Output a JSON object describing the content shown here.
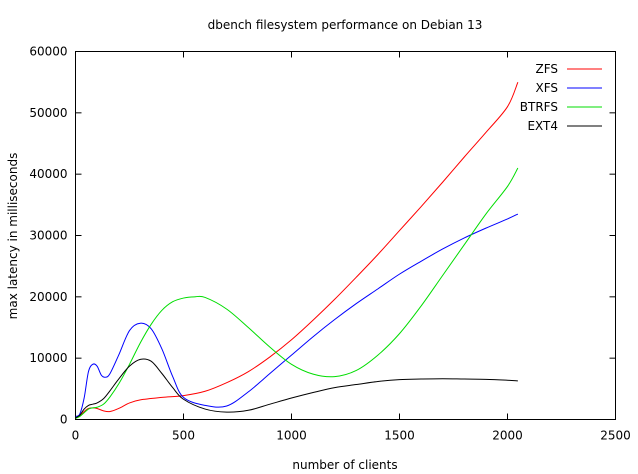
{
  "chart_data": {
    "type": "line",
    "title": "dbench filesystem performance on Debian 13",
    "xlabel": "number of clients",
    "ylabel": "max latency in milliseconds",
    "xlim": [
      0,
      2500
    ],
    "ylim": [
      0,
      60000
    ],
    "xticks": [
      0,
      500,
      1000,
      1500,
      2000,
      2500
    ],
    "yticks": [
      0,
      10000,
      20000,
      30000,
      40000,
      50000,
      60000
    ],
    "grid": false,
    "legend_position": "top-right",
    "series": [
      {
        "name": "ZFS",
        "color": "#ff0000",
        "points": [
          [
            1,
            200
          ],
          [
            20,
            600
          ],
          [
            40,
            1300
          ],
          [
            60,
            1800
          ],
          [
            80,
            1900
          ],
          [
            100,
            1800
          ],
          [
            130,
            1400
          ],
          [
            160,
            1300
          ],
          [
            200,
            1800
          ],
          [
            250,
            2700
          ],
          [
            300,
            3200
          ],
          [
            400,
            3600
          ],
          [
            500,
            3900
          ],
          [
            600,
            4600
          ],
          [
            700,
            6000
          ],
          [
            800,
            7800
          ],
          [
            900,
            10200
          ],
          [
            1000,
            13000
          ],
          [
            1100,
            16200
          ],
          [
            1200,
            19600
          ],
          [
            1300,
            23200
          ],
          [
            1400,
            26900
          ],
          [
            1500,
            30800
          ],
          [
            1600,
            34700
          ],
          [
            1700,
            38700
          ],
          [
            1800,
            42800
          ],
          [
            1900,
            46800
          ],
          [
            2000,
            51000
          ],
          [
            2048,
            55000
          ]
        ]
      },
      {
        "name": "XFS",
        "color": "#0000ff",
        "points": [
          [
            1,
            500
          ],
          [
            20,
            900
          ],
          [
            40,
            3500
          ],
          [
            60,
            7800
          ],
          [
            80,
            9000
          ],
          [
            100,
            8700
          ],
          [
            120,
            7200
          ],
          [
            140,
            6900
          ],
          [
            160,
            7500
          ],
          [
            200,
            10500
          ],
          [
            250,
            14500
          ],
          [
            300,
            15700
          ],
          [
            350,
            14800
          ],
          [
            400,
            11500
          ],
          [
            450,
            7000
          ],
          [
            500,
            3600
          ],
          [
            600,
            2300
          ],
          [
            700,
            2200
          ],
          [
            800,
            4500
          ],
          [
            900,
            7500
          ],
          [
            1000,
            10500
          ],
          [
            1100,
            13500
          ],
          [
            1200,
            16300
          ],
          [
            1300,
            18900
          ],
          [
            1400,
            21300
          ],
          [
            1500,
            23700
          ],
          [
            1600,
            25800
          ],
          [
            1700,
            27800
          ],
          [
            1800,
            29600
          ],
          [
            1900,
            31200
          ],
          [
            2000,
            32700
          ],
          [
            2048,
            33500
          ]
        ]
      },
      {
        "name": "BTRFS",
        "color": "#00dd00",
        "points": [
          [
            1,
            200
          ],
          [
            20,
            500
          ],
          [
            40,
            1100
          ],
          [
            60,
            1700
          ],
          [
            80,
            1900
          ],
          [
            100,
            2000
          ],
          [
            130,
            2500
          ],
          [
            160,
            3700
          ],
          [
            200,
            5800
          ],
          [
            250,
            9000
          ],
          [
            300,
            12500
          ],
          [
            350,
            15500
          ],
          [
            400,
            17800
          ],
          [
            450,
            19200
          ],
          [
            500,
            19800
          ],
          [
            550,
            20000
          ],
          [
            600,
            19900
          ],
          [
            700,
            18000
          ],
          [
            800,
            15000
          ],
          [
            900,
            11800
          ],
          [
            1000,
            9000
          ],
          [
            1100,
            7400
          ],
          [
            1200,
            7000
          ],
          [
            1300,
            8000
          ],
          [
            1400,
            10500
          ],
          [
            1500,
            14000
          ],
          [
            1600,
            18500
          ],
          [
            1700,
            23500
          ],
          [
            1800,
            28500
          ],
          [
            1900,
            33500
          ],
          [
            2000,
            38000
          ],
          [
            2048,
            41000
          ]
        ]
      },
      {
        "name": "EXT4",
        "color": "#000000",
        "points": [
          [
            1,
            300
          ],
          [
            20,
            700
          ],
          [
            40,
            1700
          ],
          [
            60,
            2300
          ],
          [
            80,
            2500
          ],
          [
            100,
            2700
          ],
          [
            130,
            3400
          ],
          [
            160,
            4700
          ],
          [
            200,
            6600
          ],
          [
            250,
            8700
          ],
          [
            300,
            9800
          ],
          [
            350,
            9500
          ],
          [
            400,
            7500
          ],
          [
            450,
            5200
          ],
          [
            500,
            3300
          ],
          [
            600,
            1700
          ],
          [
            700,
            1200
          ],
          [
            800,
            1500
          ],
          [
            900,
            2500
          ],
          [
            1000,
            3500
          ],
          [
            1100,
            4400
          ],
          [
            1200,
            5200
          ],
          [
            1300,
            5700
          ],
          [
            1400,
            6200
          ],
          [
            1500,
            6500
          ],
          [
            1600,
            6600
          ],
          [
            1700,
            6650
          ],
          [
            1800,
            6600
          ],
          [
            1900,
            6550
          ],
          [
            2000,
            6400
          ],
          [
            2048,
            6300
          ]
        ]
      }
    ]
  }
}
